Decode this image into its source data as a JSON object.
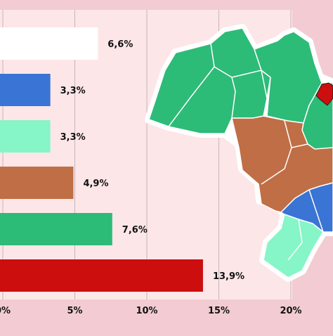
{
  "chart_data": {
    "type": "bar",
    "orientation": "horizontal",
    "categories": [
      "",
      "",
      "",
      "",
      "",
      ""
    ],
    "values": [
      6.6,
      3.3,
      3.3,
      4.9,
      7.6,
      13.9
    ],
    "value_labels": [
      "6,6%",
      "3,3%",
      "3,3%",
      "4,9%",
      "7,6%",
      "13,9%"
    ],
    "bar_colors": [
      "#ffffff",
      "#3a74d4",
      "#86f5c8",
      "#c06e45",
      "#2dbb78",
      "#cc0e0e"
    ],
    "xlim": [
      0,
      20
    ],
    "x_ticks": [
      0,
      5,
      10,
      15,
      20
    ],
    "x_tick_labels": [
      "0%",
      "5%",
      "10%",
      "15%",
      "20%"
    ],
    "grid": "vertical",
    "title": "",
    "xlabel": "",
    "ylabel": ""
  },
  "map": {
    "regions": [
      "north",
      "northeast",
      "center-west",
      "southeast",
      "south",
      "capital"
    ],
    "colors": {
      "north": "#2dbb78",
      "northeast": "#2dbb78",
      "center-west": "#c06e45",
      "southeast": "#3a74d4",
      "south": "#86f5c8",
      "capital": "#cc0e0e"
    }
  },
  "colors": {
    "page_background": "#f2ccd2",
    "plot_background": "#fde6e8",
    "gridline": "#c4b6b8"
  }
}
